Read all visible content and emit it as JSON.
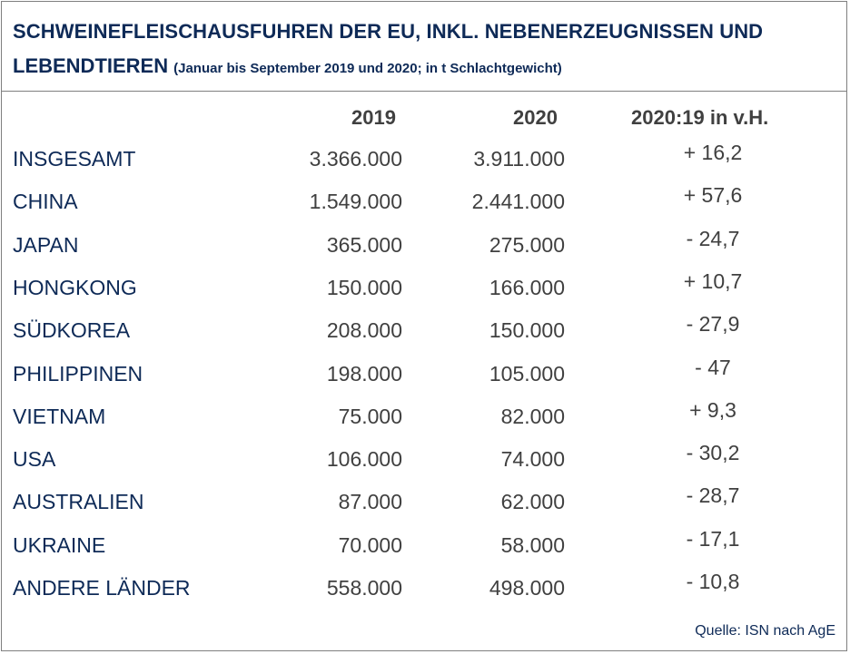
{
  "title": {
    "line1": "SCHWEINEFLEISCHAUSFUHREN DER EU, INKL. NEBENERZEUGNISSEN UND",
    "line2_main": "LEBENDTIEREN",
    "line2_sub": "(Januar bis September 2019 und 2020; in t Schlachtgewicht)"
  },
  "headers": {
    "col_2019": "2019",
    "col_2020": "2020",
    "col_change": "2020:19 in v.H."
  },
  "source": "Quelle: ISN nach AgE",
  "colors": {
    "title": "#0e2a57",
    "values": "#404040",
    "border": "#7f7f7f"
  },
  "chart_data": {
    "type": "table",
    "columns": [
      "",
      "2019",
      "2020",
      "2020:19 in v.H."
    ],
    "rows": [
      {
        "label": "INSGESAMT",
        "v2019": "3.366.000",
        "v2020": "3.911.000",
        "change": "+ 16,2"
      },
      {
        "label": "CHINA",
        "v2019": "1.549.000",
        "v2020": "2.441.000",
        "change": "+ 57,6"
      },
      {
        "label": "JAPAN",
        "v2019": "365.000",
        "v2020": "275.000",
        "change": "- 24,7"
      },
      {
        "label": "HONGKONG",
        "v2019": "150.000",
        "v2020": "166.000",
        "change": "+ 10,7"
      },
      {
        "label": "SÜDKOREA",
        "v2019": "208.000",
        "v2020": "150.000",
        "change": "- 27,9"
      },
      {
        "label": "PHILIPPINEN",
        "v2019": "198.000",
        "v2020": "105.000",
        "change": "- 47"
      },
      {
        "label": "VIETNAM",
        "v2019": "75.000",
        "v2020": "82.000",
        "change": "+ 9,3"
      },
      {
        "label": "USA",
        "v2019": "106.000",
        "v2020": "74.000",
        "change": "- 30,2"
      },
      {
        "label": "AUSTRALIEN",
        "v2019": "87.000",
        "v2020": "62.000",
        "change": "- 28,7"
      },
      {
        "label": "UKRAINE",
        "v2019": "70.000",
        "v2020": "58.000",
        "change": "- 17,1"
      },
      {
        "label": "ANDERE LÄNDER",
        "v2019": "558.000",
        "v2020": "498.000",
        "change": "- 10,8"
      }
    ]
  }
}
